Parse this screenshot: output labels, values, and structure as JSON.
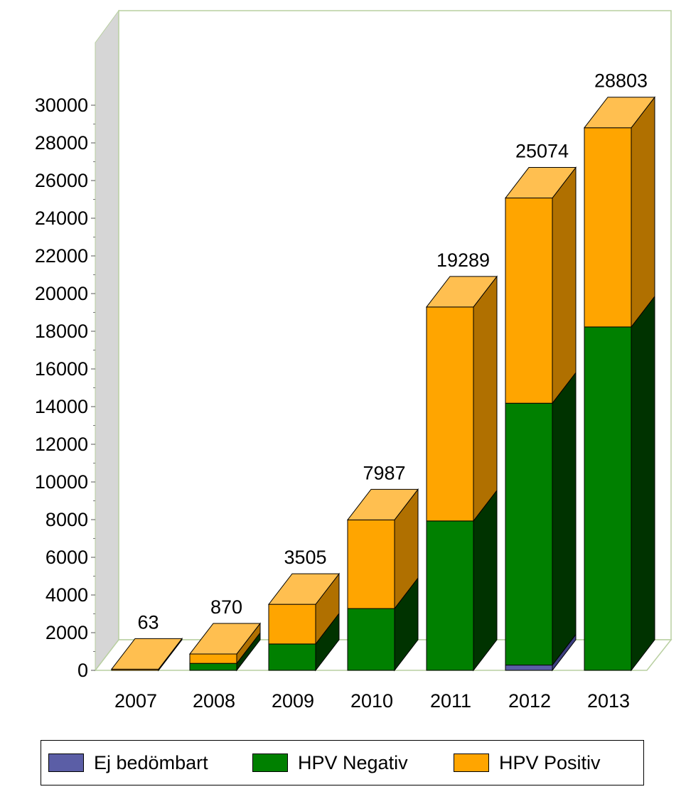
{
  "chart_data": {
    "type": "bar",
    "stacked": true,
    "three_d": true,
    "categories": [
      "2007",
      "2008",
      "2009",
      "2010",
      "2011",
      "2012",
      "2013"
    ],
    "series": [
      {
        "name": "Ej bedömbart",
        "color": "#5b5ea6",
        "side_color": "#3c3f80",
        "top_color": "#8486c4",
        "values": [
          0,
          0,
          0,
          0,
          0,
          280,
          0
        ]
      },
      {
        "name": "HPV Negativ",
        "color": "#008000",
        "side_color": "#003300",
        "top_color": "#33a033",
        "values": [
          0,
          370,
          1400,
          3280,
          7930,
          13900,
          18230
        ]
      },
      {
        "name": "HPV Positiv",
        "color": "#ffa500",
        "side_color": "#b07000",
        "top_color": "#ffbf50",
        "values": [
          63,
          500,
          2105,
          4707,
          11359,
          10894,
          10573
        ]
      }
    ],
    "totals": [
      "63",
      "870",
      "3505",
      "7987",
      "19289",
      "25074",
      "28803"
    ],
    "ylim": [
      0,
      30000
    ],
    "yticks": [
      "0",
      "2000",
      "4000",
      "6000",
      "8000",
      "10000",
      "12000",
      "14000",
      "16000",
      "18000",
      "20000",
      "22000",
      "24000",
      "26000",
      "28000",
      "30000"
    ],
    "xlabel": "",
    "ylabel": "",
    "title": "",
    "grid": false,
    "legend_position": "bottom"
  }
}
